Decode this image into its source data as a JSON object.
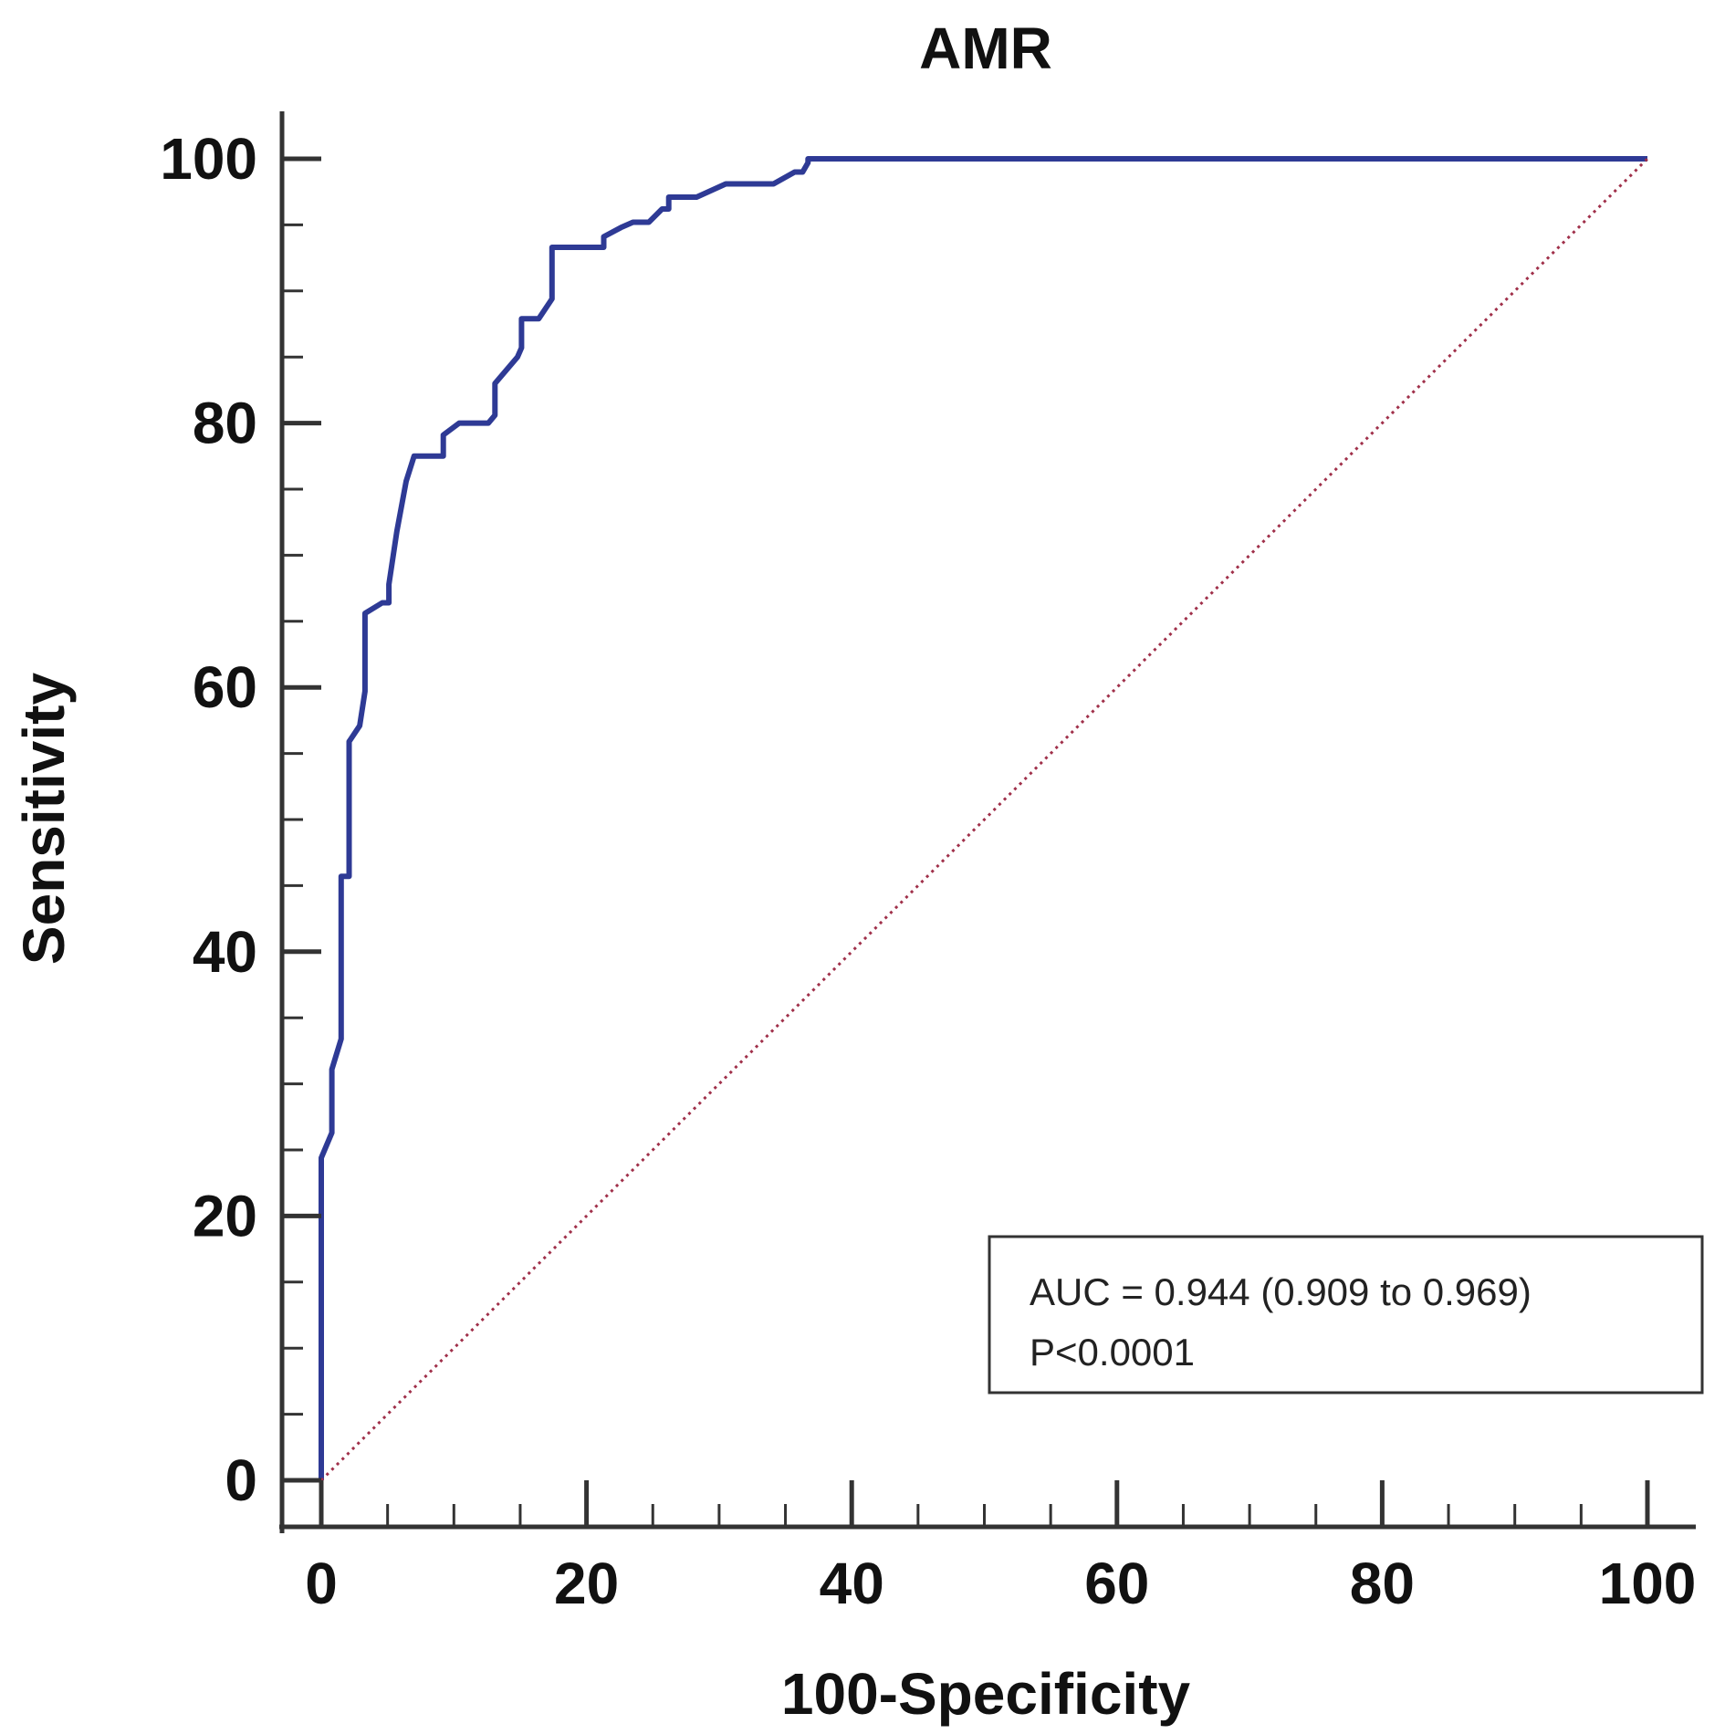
{
  "chart_data": {
    "type": "line",
    "title": "AMR",
    "xlabel": "100-Specificity",
    "ylabel": "Sensitivity",
    "xlim": [
      0,
      100
    ],
    "ylim": [
      0,
      100
    ],
    "x_ticks": [
      0,
      20,
      40,
      60,
      80,
      100
    ],
    "y_ticks": [
      0,
      20,
      40,
      60,
      80,
      100
    ],
    "grid": false,
    "series": [
      {
        "name": "AMR ROC curve",
        "color": "#2e3a95",
        "style": "step",
        "points": [
          [
            0,
            0
          ],
          [
            0,
            24.4
          ],
          [
            0.8,
            26.3
          ],
          [
            0.8,
            31.1
          ],
          [
            1.5,
            33.4
          ],
          [
            1.5,
            45.7
          ],
          [
            2.1,
            45.7
          ],
          [
            2.1,
            55.9
          ],
          [
            2.9,
            57.1
          ],
          [
            3.3,
            59.7
          ],
          [
            3.3,
            65.6
          ],
          [
            4.6,
            66.4
          ],
          [
            5.1,
            66.4
          ],
          [
            5.1,
            67.8
          ],
          [
            5.7,
            71.8
          ],
          [
            6.4,
            75.6
          ],
          [
            7.0,
            77.5
          ],
          [
            9.2,
            77.5
          ],
          [
            9.2,
            79.1
          ],
          [
            10.4,
            80.0
          ],
          [
            12.6,
            80.0
          ],
          [
            13.1,
            80.6
          ],
          [
            13.1,
            83.0
          ],
          [
            14.8,
            85.0
          ],
          [
            15.1,
            85.7
          ],
          [
            15.1,
            87.9
          ],
          [
            16.4,
            87.9
          ],
          [
            17.4,
            89.4
          ],
          [
            17.4,
            93.3
          ],
          [
            21.3,
            93.3
          ],
          [
            21.3,
            94.1
          ],
          [
            22.6,
            94.8
          ],
          [
            23.5,
            95.2
          ],
          [
            24.7,
            95.2
          ],
          [
            25.7,
            96.2
          ],
          [
            26.2,
            96.2
          ],
          [
            26.2,
            97.1
          ],
          [
            28.3,
            97.1
          ],
          [
            30.5,
            98.1
          ],
          [
            34.1,
            98.1
          ],
          [
            35.7,
            99.0
          ],
          [
            36.3,
            99.0
          ],
          [
            36.7,
            99.7
          ],
          [
            36.7,
            100
          ],
          [
            100,
            100
          ]
        ]
      },
      {
        "name": "Reference line",
        "color": "#a0304a",
        "style": "dotted",
        "points": [
          [
            0,
            0
          ],
          [
            100,
            100
          ]
        ]
      }
    ],
    "annotation": {
      "auc_text": "AUC = 0.944 (0.909 to 0.969)",
      "p_text": "P<0.0001",
      "position": "bottom-right"
    }
  }
}
